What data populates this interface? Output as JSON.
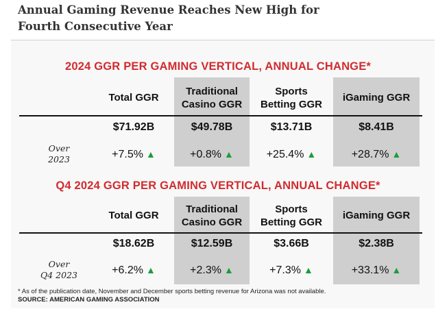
{
  "headline": {
    "line1": "Annual Gaming Revenue Reaches New High for",
    "line2": "Fourth Consecutive Year"
  },
  "sections": [
    {
      "title": "2024 GGR PER GAMING VERTICAL, ANNUAL CHANGE*",
      "columns": [
        {
          "line1": "Total GGR",
          "line2": "",
          "value": "$71.92B",
          "change": "+7.5%"
        },
        {
          "line1": "Traditional",
          "line2": "Casino GGR",
          "value": "$49.78B",
          "change": "+0.8%"
        },
        {
          "line1": "Sports",
          "line2": "Betting GGR",
          "value": "$13.71B",
          "change": "+25.4%"
        },
        {
          "line1": "iGaming GGR",
          "line2": "",
          "value": "$8.41B",
          "change": "+28.7%"
        }
      ],
      "row_label": {
        "line1": "Over",
        "line2": "2023"
      }
    },
    {
      "title": "Q4 2024 GGR PER GAMING VERTICAL, ANNUAL CHANGE*",
      "columns": [
        {
          "line1": "Total GGR",
          "line2": "",
          "value": "$18.62B",
          "change": "+6.2%"
        },
        {
          "line1": "Traditional",
          "line2": "Casino GGR",
          "value": "$12.59B",
          "change": "+2.3%"
        },
        {
          "line1": "Sports",
          "line2": "Betting GGR",
          "value": "$3.66B",
          "change": "+7.3%"
        },
        {
          "line1": "iGaming GGR",
          "line2": "",
          "value": "$2.38B",
          "change": "+33.1%"
        }
      ],
      "row_label": {
        "line1": "Over",
        "line2": "Q4 2023"
      }
    }
  ],
  "footnote": "* As of the publication date, November and December sports betting revenue for Arizona was not available.",
  "source": "SOURCE: AMERICAN GAMING ASSOCIATION",
  "colors": {
    "title_red": "#d12b2f",
    "up_green": "#1a9e3a",
    "shade": "#cfcfcf"
  },
  "icons": {
    "change_indicator": "triangle-up-icon"
  }
}
